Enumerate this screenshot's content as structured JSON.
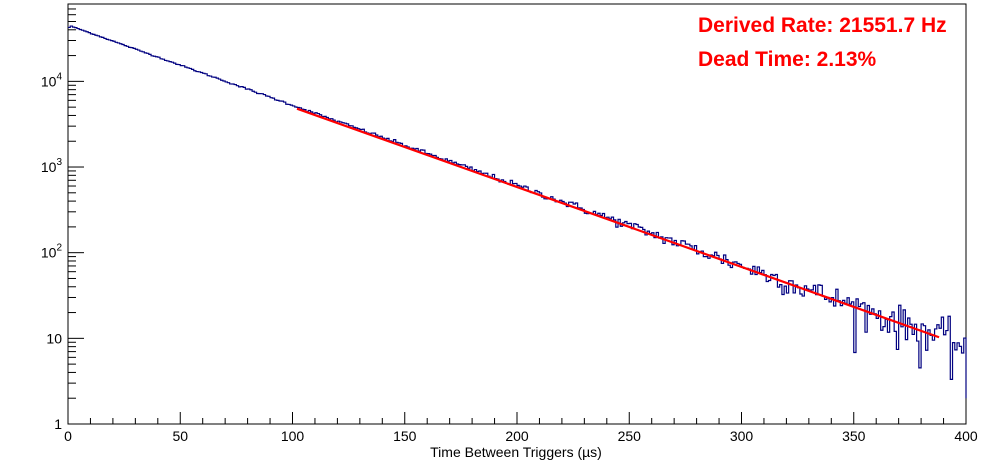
{
  "chart_data": {
    "type": "line",
    "xlabel": "Time Between Triggers (µs)",
    "ylabel": "",
    "xlim": [
      0,
      400
    ],
    "ylim": [
      1,
      80000
    ],
    "yscale": "log",
    "grid": false,
    "x_ticks": [
      "0",
      "50",
      "100",
      "150",
      "200",
      "250",
      "300",
      "350",
      "400"
    ],
    "y_ticks": [
      {
        "base": "1",
        "exp": ""
      },
      {
        "base": "10",
        "exp": ""
      },
      {
        "base": "10",
        "exp": "2"
      },
      {
        "base": "10",
        "exp": "3"
      },
      {
        "base": "10",
        "exp": "4"
      }
    ],
    "annotations": [
      "Derived Rate: 21551.7 Hz",
      "Dead Time: 2.13%"
    ],
    "series": [
      {
        "kind": "histogram",
        "color": "#000080",
        "bin_width": 1,
        "x_start": 0,
        "x_end": 400,
        "peak_value": 44000,
        "peak_x": 1,
        "decay_rate_per_us": 0.02155,
        "decay_model": "exponential"
      },
      {
        "kind": "fit",
        "color": "#ff0000",
        "x": [
          102,
          388
        ],
        "y": [
          4800,
          10.3
        ]
      }
    ]
  }
}
